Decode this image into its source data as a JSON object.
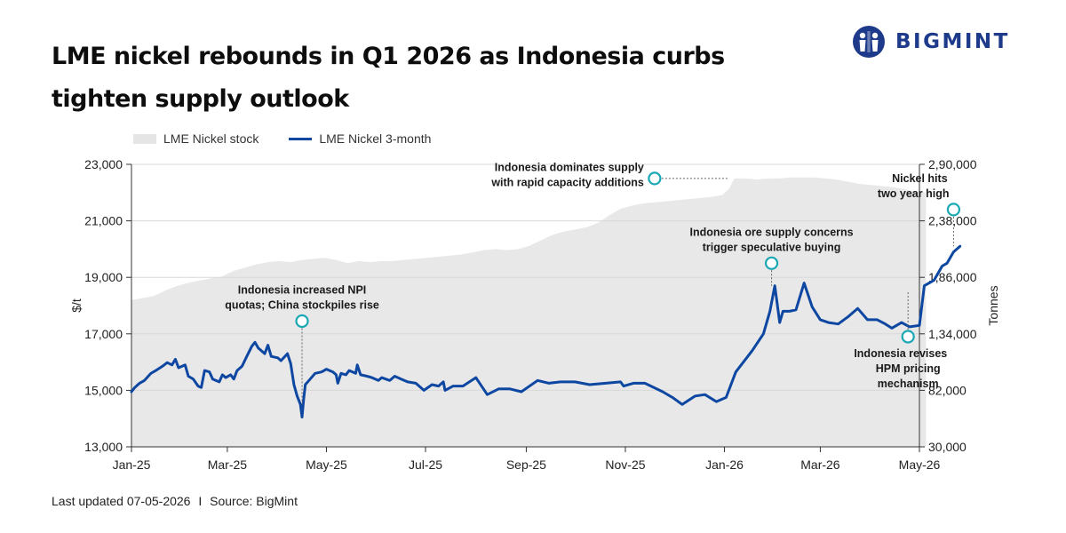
{
  "title": "LME nickel rebounds in Q1 2026 as Indonesia curbs tighten supply outlook",
  "logo": {
    "text": "BIGMINT",
    "icon": "bigmint-people-logo",
    "color": "#1e3a8a"
  },
  "footer": {
    "updated": "Last updated 07-05-2026",
    "separator": "I",
    "source": "Source: BigMint"
  },
  "chart_data": {
    "type": "line",
    "title": "LME nickel rebounds in Q1 2026 as Indonesia curbs tighten supply outlook",
    "xlabel": "",
    "ylabel": "$/t",
    "y2label": "Tonnes",
    "ylim": [
      13000,
      23000
    ],
    "y2lim": [
      30000,
      290000
    ],
    "yticks": [
      "13,000",
      "15,000",
      "17,000",
      "19,000",
      "21,000",
      "23,000"
    ],
    "y2ticks": [
      "30,000",
      "82,000",
      "1,34,000",
      "1,86,000",
      "2,38,000",
      "2,90,000"
    ],
    "xticks": [
      {
        "label": "Jan-25",
        "date": "2025-01-01"
      },
      {
        "label": "Mar-25",
        "date": "2025-03-01"
      },
      {
        "label": "May-25",
        "date": "2025-05-01"
      },
      {
        "label": "Jul-25",
        "date": "2025-07-01"
      },
      {
        "label": "Sep-25",
        "date": "2025-09-01"
      },
      {
        "label": "Nov-25",
        "date": "2025-11-01"
      },
      {
        "label": "Jan-26",
        "date": "2026-01-01"
      },
      {
        "label": "Mar-26",
        "date": "2026-03-01"
      },
      {
        "label": "May-26",
        "date": "2026-05-01"
      }
    ],
    "grid": "horizontal",
    "legend_position": "top-left",
    "colors": {
      "price": "#0d47a1",
      "stock": "#e8e8e8",
      "marker": "#1aa8b5",
      "grid": "#d9d9d9"
    },
    "series": [
      {
        "name": "LME Nickel stock",
        "kind": "area",
        "axis": "right",
        "points": [
          [
            "2025-01-01",
            165000
          ],
          [
            "2025-01-08",
            167000
          ],
          [
            "2025-01-15",
            169000
          ],
          [
            "2025-01-22",
            174000
          ],
          [
            "2025-01-29",
            178000
          ],
          [
            "2025-02-05",
            181000
          ],
          [
            "2025-02-12",
            183000
          ],
          [
            "2025-02-19",
            185000
          ],
          [
            "2025-02-26",
            187000
          ],
          [
            "2025-03-05",
            192000
          ],
          [
            "2025-03-12",
            195000
          ],
          [
            "2025-03-19",
            198000
          ],
          [
            "2025-03-26",
            200000
          ],
          [
            "2025-04-02",
            201000
          ],
          [
            "2025-04-09",
            200000
          ],
          [
            "2025-04-16",
            202000
          ],
          [
            "2025-04-23",
            203000
          ],
          [
            "2025-04-30",
            204000
          ],
          [
            "2025-05-07",
            202000
          ],
          [
            "2025-05-14",
            199000
          ],
          [
            "2025-05-21",
            201000
          ],
          [
            "2025-05-28",
            200000
          ],
          [
            "2025-06-04",
            201000
          ],
          [
            "2025-06-11",
            201000
          ],
          [
            "2025-06-18",
            202000
          ],
          [
            "2025-06-25",
            203000
          ],
          [
            "2025-07-02",
            204000
          ],
          [
            "2025-07-09",
            205000
          ],
          [
            "2025-07-16",
            206000
          ],
          [
            "2025-07-23",
            207000
          ],
          [
            "2025-07-30",
            209000
          ],
          [
            "2025-08-06",
            211000
          ],
          [
            "2025-08-13",
            212000
          ],
          [
            "2025-08-20",
            211000
          ],
          [
            "2025-08-27",
            212000
          ],
          [
            "2025-09-03",
            215000
          ],
          [
            "2025-09-10",
            220000
          ],
          [
            "2025-09-17",
            225000
          ],
          [
            "2025-09-24",
            228000
          ],
          [
            "2025-10-01",
            230000
          ],
          [
            "2025-10-08",
            232000
          ],
          [
            "2025-10-15",
            236000
          ],
          [
            "2025-10-22",
            243000
          ],
          [
            "2025-10-29",
            249000
          ],
          [
            "2025-11-05",
            252000
          ],
          [
            "2025-11-12",
            254000
          ],
          [
            "2025-11-19",
            255000
          ],
          [
            "2025-11-26",
            256000
          ],
          [
            "2025-12-03",
            257000
          ],
          [
            "2025-12-10",
            258000
          ],
          [
            "2025-12-17",
            259000
          ],
          [
            "2025-12-24",
            260000
          ],
          [
            "2025-12-31",
            262000
          ],
          [
            "2026-01-04",
            268000
          ],
          [
            "2026-01-07",
            277000
          ],
          [
            "2026-01-14",
            277000
          ],
          [
            "2026-01-21",
            276000
          ],
          [
            "2026-01-28",
            277000
          ],
          [
            "2026-02-04",
            277000
          ],
          [
            "2026-02-11",
            278000
          ],
          [
            "2026-02-18",
            278000
          ],
          [
            "2026-02-25",
            278000
          ],
          [
            "2026-03-04",
            277000
          ],
          [
            "2026-03-11",
            276000
          ],
          [
            "2026-03-18",
            274000
          ],
          [
            "2026-03-25",
            272000
          ],
          [
            "2026-04-01",
            271000
          ],
          [
            "2026-04-08",
            270000
          ],
          [
            "2026-04-15",
            269000
          ],
          [
            "2026-04-22",
            267000
          ],
          [
            "2026-04-29",
            265000
          ],
          [
            "2026-05-05",
            264000
          ]
        ]
      },
      {
        "name": "LME Nickel 3-month",
        "kind": "line",
        "axis": "left",
        "points": [
          [
            "2025-01-01",
            14950
          ],
          [
            "2025-01-03",
            15100
          ],
          [
            "2025-01-06",
            15250
          ],
          [
            "2025-01-09",
            15350
          ],
          [
            "2025-01-13",
            15600
          ],
          [
            "2025-01-16",
            15700
          ],
          [
            "2025-01-20",
            15850
          ],
          [
            "2025-01-23",
            15980
          ],
          [
            "2025-01-26",
            15900
          ],
          [
            "2025-01-28",
            16100
          ],
          [
            "2025-01-30",
            15800
          ],
          [
            "2025-02-03",
            15900
          ],
          [
            "2025-02-05",
            15500
          ],
          [
            "2025-02-08",
            15400
          ],
          [
            "2025-02-11",
            15150
          ],
          [
            "2025-02-13",
            15100
          ],
          [
            "2025-02-15",
            15700
          ],
          [
            "2025-02-18",
            15650
          ],
          [
            "2025-02-20",
            15400
          ],
          [
            "2025-02-24",
            15300
          ],
          [
            "2025-02-26",
            15550
          ],
          [
            "2025-02-28",
            15450
          ],
          [
            "2025-03-03",
            15550
          ],
          [
            "2025-03-05",
            15400
          ],
          [
            "2025-03-07",
            15700
          ],
          [
            "2025-03-10",
            15850
          ],
          [
            "2025-03-13",
            16200
          ],
          [
            "2025-03-16",
            16550
          ],
          [
            "2025-03-18",
            16700
          ],
          [
            "2025-03-20",
            16500
          ],
          [
            "2025-03-24",
            16300
          ],
          [
            "2025-03-26",
            16600
          ],
          [
            "2025-03-28",
            16200
          ],
          [
            "2025-04-01",
            16150
          ],
          [
            "2025-04-03",
            16050
          ],
          [
            "2025-04-07",
            16300
          ],
          [
            "2025-04-09",
            15950
          ],
          [
            "2025-04-11",
            15200
          ],
          [
            "2025-04-13",
            14800
          ],
          [
            "2025-04-15",
            14500
          ],
          [
            "2025-04-16",
            14050
          ],
          [
            "2025-04-17",
            14700
          ],
          [
            "2025-04-18",
            15200
          ],
          [
            "2025-04-21",
            15400
          ],
          [
            "2025-04-24",
            15600
          ],
          [
            "2025-04-28",
            15650
          ],
          [
            "2025-05-01",
            15750
          ],
          [
            "2025-05-05",
            15650
          ],
          [
            "2025-05-07",
            15550
          ],
          [
            "2025-05-08",
            15250
          ],
          [
            "2025-05-10",
            15600
          ],
          [
            "2025-05-13",
            15550
          ],
          [
            "2025-05-15",
            15700
          ],
          [
            "2025-05-19",
            15600
          ],
          [
            "2025-05-20",
            15900
          ],
          [
            "2025-05-22",
            15550
          ],
          [
            "2025-05-26",
            15500
          ],
          [
            "2025-05-29",
            15450
          ],
          [
            "2025-06-02",
            15350
          ],
          [
            "2025-06-04",
            15450
          ],
          [
            "2025-06-09",
            15350
          ],
          [
            "2025-06-12",
            15500
          ],
          [
            "2025-06-16",
            15400
          ],
          [
            "2025-06-20",
            15300
          ],
          [
            "2025-06-25",
            15250
          ],
          [
            "2025-06-30",
            15000
          ],
          [
            "2025-07-05",
            15200
          ],
          [
            "2025-07-09",
            15150
          ],
          [
            "2025-07-12",
            15300
          ],
          [
            "2025-07-13",
            15000
          ],
          [
            "2025-07-18",
            15150
          ],
          [
            "2025-07-24",
            15150
          ],
          [
            "2025-08-01",
            15450
          ],
          [
            "2025-08-08",
            14850
          ],
          [
            "2025-08-15",
            15050
          ],
          [
            "2025-08-22",
            15050
          ],
          [
            "2025-08-29",
            14950
          ],
          [
            "2025-09-08",
            15350
          ],
          [
            "2025-09-15",
            15250
          ],
          [
            "2025-09-22",
            15300
          ],
          [
            "2025-10-01",
            15300
          ],
          [
            "2025-10-10",
            15200
          ],
          [
            "2025-10-20",
            15250
          ],
          [
            "2025-10-29",
            15300
          ],
          [
            "2025-10-31",
            15150
          ],
          [
            "2025-11-06",
            15250
          ],
          [
            "2025-11-13",
            15250
          ],
          [
            "2025-11-24",
            14950
          ],
          [
            "2025-11-30",
            14750
          ],
          [
            "2025-12-06",
            14500
          ],
          [
            "2025-12-14",
            14800
          ],
          [
            "2025-12-20",
            14850
          ],
          [
            "2025-12-27",
            14600
          ],
          [
            "2026-01-02",
            14750
          ],
          [
            "2026-01-08",
            15650
          ],
          [
            "2026-01-18",
            16400
          ],
          [
            "2026-01-25",
            17000
          ],
          [
            "2026-01-29",
            17800
          ],
          [
            "2026-02-01",
            18700
          ],
          [
            "2026-02-04",
            17400
          ],
          [
            "2026-02-06",
            17800
          ],
          [
            "2026-02-10",
            17800
          ],
          [
            "2026-02-14",
            17850
          ],
          [
            "2026-02-19",
            18800
          ],
          [
            "2026-02-24",
            17950
          ],
          [
            "2026-03-01",
            17500
          ],
          [
            "2026-03-06",
            17400
          ],
          [
            "2026-03-12",
            17350
          ],
          [
            "2026-03-18",
            17600
          ],
          [
            "2026-03-24",
            17900
          ],
          [
            "2026-03-30",
            17500
          ],
          [
            "2026-04-05",
            17500
          ],
          [
            "2026-04-10",
            17350
          ],
          [
            "2026-04-14",
            17200
          ],
          [
            "2026-04-20",
            17400
          ],
          [
            "2026-04-25",
            17250
          ],
          [
            "2026-05-01",
            17300
          ],
          [
            "2026-05-04",
            18700
          ],
          [
            "2026-05-10",
            18900
          ],
          [
            "2026-05-15",
            19400
          ],
          [
            "2026-05-18",
            19500
          ],
          [
            "2026-05-22",
            19900
          ],
          [
            "2026-05-26",
            20100
          ]
        ]
      }
    ],
    "annotations": [
      {
        "text": [
          "Indonesia increased NPI",
          "quotas; China stockpiles rise"
        ],
        "marker": {
          "date": "2025-04-16",
          "value": 17450
        },
        "leader_to": {
          "date": "2025-04-16",
          "value": 14500
        },
        "anchor": "above"
      },
      {
        "text": [
          "Indonesia dominates supply",
          "with rapid capacity additions"
        ],
        "marker": {
          "date": "2025-11-19",
          "value": 22500
        },
        "leader_to": {
          "date": "2026-01-04",
          "value": 22500
        },
        "anchor": "left"
      },
      {
        "text": [
          "Indonesia ore supply concerns",
          "trigger speculative buying"
        ],
        "marker": {
          "date": "2026-01-30",
          "value": 19500
        },
        "leader_to": {
          "date": "2026-01-30",
          "value": 18700
        },
        "anchor": "above"
      },
      {
        "text": [
          "Indonesia revises",
          "HPM pricing",
          "mechanism"
        ],
        "marker": {
          "date": "2026-04-24",
          "value": 16900
        },
        "leader_to": {
          "date": "2026-04-24",
          "value": 18500
        },
        "anchor": "below"
      },
      {
        "text": [
          "Nickel hits",
          "two year high"
        ],
        "marker": {
          "date": "2026-05-22",
          "value": 21400
        },
        "leader_to": {
          "date": "2026-05-22",
          "value": 20100
        },
        "anchor": "above"
      }
    ]
  }
}
